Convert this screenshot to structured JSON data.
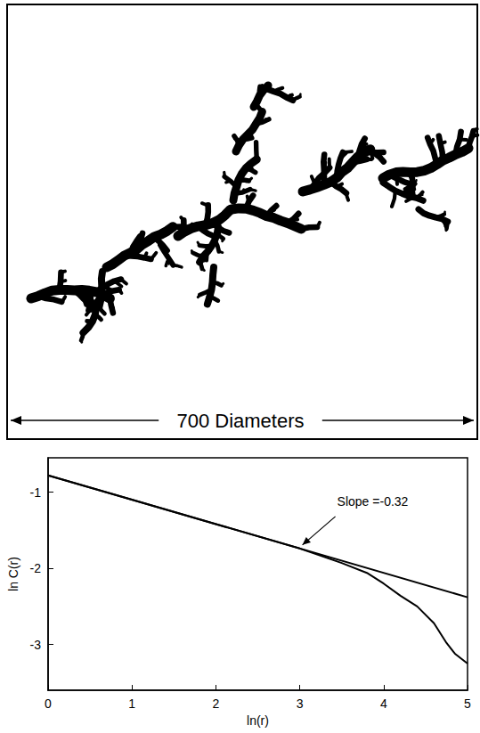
{
  "scale_bar": {
    "label": "700 Diameters"
  },
  "chart_data": {
    "type": "line",
    "x_label": "ln(r)",
    "y_label": "ln C(r)",
    "xlim": [
      0,
      5
    ],
    "xticks": [
      0,
      1,
      2,
      3,
      4,
      5
    ],
    "ylim": [
      -3.6,
      -0.55
    ],
    "yticks": [
      -3,
      -2,
      -1
    ],
    "annotations": [
      "Slope =-0.32"
    ],
    "series": [
      {
        "x": [
          0,
          5
        ],
        "values": [
          -0.78,
          -2.38
        ],
        "color": "#000000"
      },
      {
        "x": [
          0,
          1,
          2,
          3,
          3.5,
          3.8,
          4,
          4.2,
          4.4,
          4.6,
          4.75,
          4.85,
          5
        ],
        "values": [
          -0.78,
          -1.1,
          -1.42,
          -1.74,
          -1.93,
          -2.06,
          -2.2,
          -2.36,
          -2.5,
          -2.72,
          -2.98,
          -3.12,
          -3.25
        ],
        "color": "#000000"
      }
    ]
  }
}
